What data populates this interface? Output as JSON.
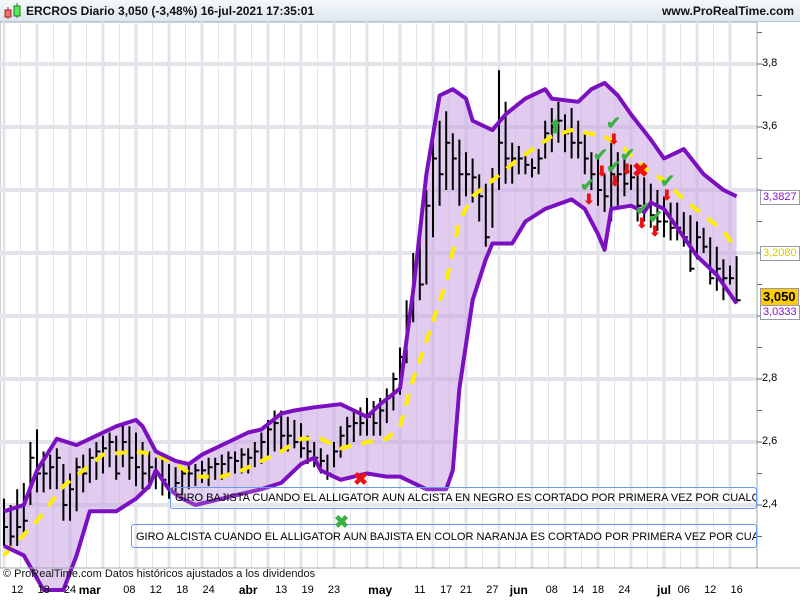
{
  "header": {
    "title": "ERCROS Diario 3,050 (-3,48%) 16-jul-2021 17:35:01",
    "site": "www.ProRealTime.com"
  },
  "footer": {
    "note": "© ProRealTime.com  Datos históricos ajustados a los dividendos"
  },
  "annotations": {
    "bearish": "GIRO BAJISTA  CUANDO EL ALLIGATOR AUN ALCISTA EN NEGRO ES CORTADO POR PRIMERA VEZ POR CUALQUIER L",
    "bullish": "GIRO ALCISTA CUANDO EL ALLIGATOR AUN BAJISTA EN COLOR NARANJA ES CORTADO POR PRIMERA VEZ POR CUALQUIER"
  },
  "price_tags": {
    "last": "3,050",
    "upper": "3,3827",
    "middle": "3,2080",
    "lower": "3,0333"
  },
  "colors": {
    "band": "#7b10c0",
    "band_fill": "#c9a3e3",
    "middle": "#ffee00",
    "last_tag": "#ffcc00",
    "signal_up": "#3cb043",
    "signal_down": "#ee1111"
  },
  "chart_data": {
    "type": "ohlc",
    "title": "ERCROS Diario",
    "ylim": [
      2.2,
      3.9
    ],
    "y_ticks": [
      "3,8",
      "3,6",
      "2,8",
      "2,6",
      "2,4"
    ],
    "y_tick_values": [
      3.8,
      3.6,
      2.8,
      2.6,
      2.4
    ],
    "x_labels": [
      {
        "label": "12",
        "i": 2
      },
      {
        "label": "18",
        "i": 6
      },
      {
        "label": "24",
        "i": 10
      },
      {
        "label": "mar",
        "i": 13,
        "month": true
      },
      {
        "label": "08",
        "i": 19
      },
      {
        "label": "12",
        "i": 23
      },
      {
        "label": "18",
        "i": 27
      },
      {
        "label": "24",
        "i": 31
      },
      {
        "label": "abr",
        "i": 37,
        "month": true
      },
      {
        "label": "13",
        "i": 42
      },
      {
        "label": "19",
        "i": 46
      },
      {
        "label": "23",
        "i": 50
      },
      {
        "label": "may",
        "i": 57,
        "month": true
      },
      {
        "label": "11",
        "i": 63
      },
      {
        "label": "17",
        "i": 67
      },
      {
        "label": "21",
        "i": 70
      },
      {
        "label": "27",
        "i": 74
      },
      {
        "label": "jun",
        "i": 78,
        "month": true
      },
      {
        "label": "08",
        "i": 83
      },
      {
        "label": "14",
        "i": 87
      },
      {
        "label": "18",
        "i": 90
      },
      {
        "label": "24",
        "i": 94
      },
      {
        "label": "jul",
        "i": 100,
        "month": true
      },
      {
        "label": "06",
        "i": 103
      },
      {
        "label": "12",
        "i": 107
      },
      {
        "label": "16",
        "i": 111
      }
    ],
    "bars": [
      [
        2.42,
        2.27,
        2.33
      ],
      [
        2.4,
        2.26,
        2.3
      ],
      [
        2.45,
        2.27,
        2.33
      ],
      [
        2.47,
        2.3,
        2.35
      ],
      [
        2.6,
        2.4,
        2.55
      ],
      [
        2.64,
        2.44,
        2.5
      ],
      [
        2.57,
        2.44,
        2.5
      ],
      [
        2.56,
        2.45,
        2.52
      ],
      [
        2.58,
        2.45,
        2.55
      ],
      [
        2.53,
        2.35,
        2.4
      ],
      [
        2.5,
        2.35,
        2.45
      ],
      [
        2.55,
        2.38,
        2.52
      ],
      [
        2.56,
        2.44,
        2.5
      ],
      [
        2.58,
        2.47,
        2.55
      ],
      [
        2.6,
        2.48,
        2.57
      ],
      [
        2.62,
        2.5,
        2.58
      ],
      [
        2.63,
        2.52,
        2.6
      ],
      [
        2.62,
        2.48,
        2.5
      ],
      [
        2.66,
        2.52,
        2.6
      ],
      [
        2.65,
        2.48,
        2.55
      ],
      [
        2.63,
        2.46,
        2.52
      ],
      [
        2.6,
        2.45,
        2.5
      ],
      [
        2.57,
        2.45,
        2.52
      ],
      [
        2.55,
        2.45,
        2.5
      ],
      [
        2.55,
        2.43,
        2.48
      ],
      [
        2.53,
        2.42,
        2.45
      ],
      [
        2.52,
        2.43,
        2.47
      ],
      [
        2.52,
        2.43,
        2.5
      ],
      [
        2.53,
        2.45,
        2.5
      ],
      [
        2.53,
        2.46,
        2.51
      ],
      [
        2.54,
        2.47,
        2.51
      ],
      [
        2.55,
        2.46,
        2.52
      ],
      [
        2.55,
        2.48,
        2.53
      ],
      [
        2.56,
        2.48,
        2.53
      ],
      [
        2.57,
        2.49,
        2.55
      ],
      [
        2.57,
        2.5,
        2.54
      ],
      [
        2.58,
        2.5,
        2.56
      ],
      [
        2.58,
        2.5,
        2.55
      ],
      [
        2.6,
        2.52,
        2.57
      ],
      [
        2.63,
        2.53,
        2.6
      ],
      [
        2.67,
        2.55,
        2.64
      ],
      [
        2.7,
        2.57,
        2.66
      ],
      [
        2.7,
        2.57,
        2.62
      ],
      [
        2.68,
        2.57,
        2.62
      ],
      [
        2.67,
        2.58,
        2.6
      ],
      [
        2.66,
        2.55,
        2.58
      ],
      [
        2.62,
        2.53,
        2.57
      ],
      [
        2.6,
        2.52,
        2.55
      ],
      [
        2.58,
        2.5,
        2.54
      ],
      [
        2.56,
        2.48,
        2.5
      ],
      [
        2.6,
        2.52,
        2.57
      ],
      [
        2.65,
        2.55,
        2.62
      ],
      [
        2.68,
        2.58,
        2.65
      ],
      [
        2.7,
        2.6,
        2.66
      ],
      [
        2.71,
        2.62,
        2.66
      ],
      [
        2.74,
        2.62,
        2.68
      ],
      [
        2.73,
        2.62,
        2.66
      ],
      [
        2.74,
        2.62,
        2.7
      ],
      [
        2.77,
        2.66,
        2.74
      ],
      [
        2.82,
        2.7,
        2.8
      ],
      [
        2.9,
        2.75,
        2.87
      ],
      [
        3.05,
        2.85,
        3.0
      ],
      [
        3.2,
        2.98,
        3.15
      ],
      [
        3.25,
        3.05,
        3.1
      ],
      [
        3.4,
        3.1,
        3.35
      ],
      [
        3.55,
        3.25,
        3.5
      ],
      [
        3.62,
        3.35,
        3.45
      ],
      [
        3.65,
        3.4,
        3.55
      ],
      [
        3.58,
        3.4,
        3.5
      ],
      [
        3.56,
        3.35,
        3.45
      ],
      [
        3.52,
        3.38,
        3.45
      ],
      [
        3.5,
        3.36,
        3.44
      ],
      [
        3.45,
        3.3,
        3.38
      ],
      [
        3.42,
        3.22,
        3.25
      ],
      [
        3.47,
        3.28,
        3.44
      ],
      [
        3.78,
        3.4,
        3.55
      ],
      [
        3.68,
        3.42,
        3.5
      ],
      [
        3.55,
        3.42,
        3.5
      ],
      [
        3.54,
        3.45,
        3.5
      ],
      [
        3.52,
        3.45,
        3.48
      ],
      [
        3.5,
        3.44,
        3.47
      ],
      [
        3.53,
        3.45,
        3.5
      ],
      [
        3.62,
        3.5,
        3.58
      ],
      [
        3.66,
        3.52,
        3.6
      ],
      [
        3.68,
        3.55,
        3.62
      ],
      [
        3.64,
        3.52,
        3.58
      ],
      [
        3.66,
        3.5,
        3.55
      ],
      [
        3.62,
        3.5,
        3.55
      ],
      [
        3.58,
        3.45,
        3.5
      ],
      [
        3.52,
        3.4,
        3.45
      ],
      [
        3.5,
        3.35,
        3.4
      ],
      [
        3.45,
        3.33,
        3.38
      ],
      [
        3.55,
        3.3,
        3.45
      ],
      [
        3.52,
        3.35,
        3.45
      ],
      [
        3.5,
        3.38,
        3.42
      ],
      [
        3.48,
        3.4,
        3.44
      ],
      [
        3.47,
        3.3,
        3.35
      ],
      [
        3.44,
        3.3,
        3.35
      ],
      [
        3.42,
        3.28,
        3.32
      ],
      [
        3.4,
        3.27,
        3.3
      ],
      [
        3.38,
        3.25,
        3.3
      ],
      [
        3.36,
        3.24,
        3.28
      ],
      [
        3.36,
        3.24,
        3.28
      ],
      [
        3.33,
        3.22,
        3.25
      ],
      [
        3.32,
        3.14,
        3.15
      ],
      [
        3.3,
        3.18,
        3.25
      ],
      [
        3.28,
        3.2,
        3.22
      ],
      [
        3.25,
        3.1,
        3.12
      ],
      [
        3.22,
        3.08,
        3.15
      ],
      [
        3.18,
        3.05,
        3.12
      ],
      [
        3.16,
        3.1,
        3.12
      ],
      [
        3.19,
        3.04,
        3.05
      ]
    ],
    "upper_band": [
      [
        0,
        2.38
      ],
      [
        3,
        2.4
      ],
      [
        5,
        2.51
      ],
      [
        8,
        2.61
      ],
      [
        11,
        2.59
      ],
      [
        14,
        2.62
      ],
      [
        17,
        2.65
      ],
      [
        20,
        2.67
      ],
      [
        21,
        2.65
      ],
      [
        23,
        2.57
      ],
      [
        26,
        2.54
      ],
      [
        28,
        2.53
      ],
      [
        30,
        2.56
      ],
      [
        34,
        2.6
      ],
      [
        37,
        2.63
      ],
      [
        39,
        2.64
      ],
      [
        42,
        2.69
      ],
      [
        44,
        2.7
      ],
      [
        47,
        2.71
      ],
      [
        51,
        2.72
      ],
      [
        53,
        2.7
      ],
      [
        55,
        2.68
      ],
      [
        57,
        2.72
      ],
      [
        60,
        2.77
      ],
      [
        62,
        3.08
      ],
      [
        64,
        3.45
      ],
      [
        66,
        3.7
      ],
      [
        68,
        3.72
      ],
      [
        70,
        3.69
      ],
      [
        71,
        3.62
      ],
      [
        73,
        3.6
      ],
      [
        74,
        3.59
      ],
      [
        76,
        3.64
      ],
      [
        79,
        3.69
      ],
      [
        82,
        3.72
      ],
      [
        83,
        3.69
      ],
      [
        87,
        3.68
      ],
      [
        89,
        3.72
      ],
      [
        91,
        3.74
      ],
      [
        93,
        3.7
      ],
      [
        95,
        3.64
      ],
      [
        98,
        3.56
      ],
      [
        100,
        3.5
      ],
      [
        103,
        3.53
      ],
      [
        106,
        3.45
      ],
      [
        109,
        3.4
      ],
      [
        111,
        3.38
      ]
    ],
    "middle_line": [
      [
        0,
        2.24
      ],
      [
        5,
        2.35
      ],
      [
        9,
        2.46
      ],
      [
        12,
        2.51
      ],
      [
        15,
        2.56
      ],
      [
        20,
        2.57
      ],
      [
        23,
        2.56
      ],
      [
        26,
        2.53
      ],
      [
        29,
        2.49
      ],
      [
        33,
        2.49
      ],
      [
        36,
        2.51
      ],
      [
        39,
        2.54
      ],
      [
        42,
        2.57
      ],
      [
        45,
        2.61
      ],
      [
        48,
        2.61
      ],
      [
        51,
        2.58
      ],
      [
        55,
        2.6
      ],
      [
        58,
        2.61
      ],
      [
        60,
        2.65
      ],
      [
        62,
        2.8
      ],
      [
        64,
        2.92
      ],
      [
        67,
        3.11
      ],
      [
        69,
        3.3
      ],
      [
        71,
        3.38
      ],
      [
        74,
        3.43
      ],
      [
        78,
        3.5
      ],
      [
        83,
        3.57
      ],
      [
        86,
        3.59
      ],
      [
        91,
        3.57
      ],
      [
        94,
        3.53
      ],
      [
        97,
        3.47
      ],
      [
        100,
        3.43
      ],
      [
        103,
        3.37
      ],
      [
        106,
        3.32
      ],
      [
        109,
        3.27
      ],
      [
        111,
        3.21
      ]
    ],
    "lower_band": [
      [
        0,
        2.27
      ],
      [
        3,
        2.24
      ],
      [
        6,
        2.13
      ],
      [
        9,
        2.13
      ],
      [
        11,
        2.24
      ],
      [
        13,
        2.38
      ],
      [
        17,
        2.38
      ],
      [
        20,
        2.42
      ],
      [
        22,
        2.46
      ],
      [
        23,
        2.51
      ],
      [
        25,
        2.45
      ],
      [
        27,
        2.42
      ],
      [
        29,
        2.4
      ],
      [
        35,
        2.43
      ],
      [
        39,
        2.45
      ],
      [
        42,
        2.47
      ],
      [
        45,
        2.53
      ],
      [
        47,
        2.55
      ],
      [
        48,
        2.51
      ],
      [
        51,
        2.48
      ],
      [
        55,
        2.5
      ],
      [
        58,
        2.49
      ],
      [
        60,
        2.49
      ],
      [
        62,
        2.47
      ],
      [
        64,
        2.45
      ],
      [
        67,
        2.45
      ],
      [
        68,
        2.51
      ],
      [
        69,
        2.77
      ],
      [
        71,
        3.05
      ],
      [
        73,
        3.18
      ],
      [
        74,
        3.23
      ],
      [
        77,
        3.23
      ],
      [
        79,
        3.3
      ],
      [
        82,
        3.34
      ],
      [
        86,
        3.37
      ],
      [
        88,
        3.34
      ],
      [
        90,
        3.26
      ],
      [
        91,
        3.21
      ],
      [
        92,
        3.34
      ],
      [
        95,
        3.35
      ],
      [
        97,
        3.33
      ],
      [
        98,
        3.36
      ],
      [
        100,
        3.34
      ],
      [
        105,
        3.19
      ],
      [
        108,
        3.13
      ],
      [
        111,
        3.04
      ]
    ]
  }
}
